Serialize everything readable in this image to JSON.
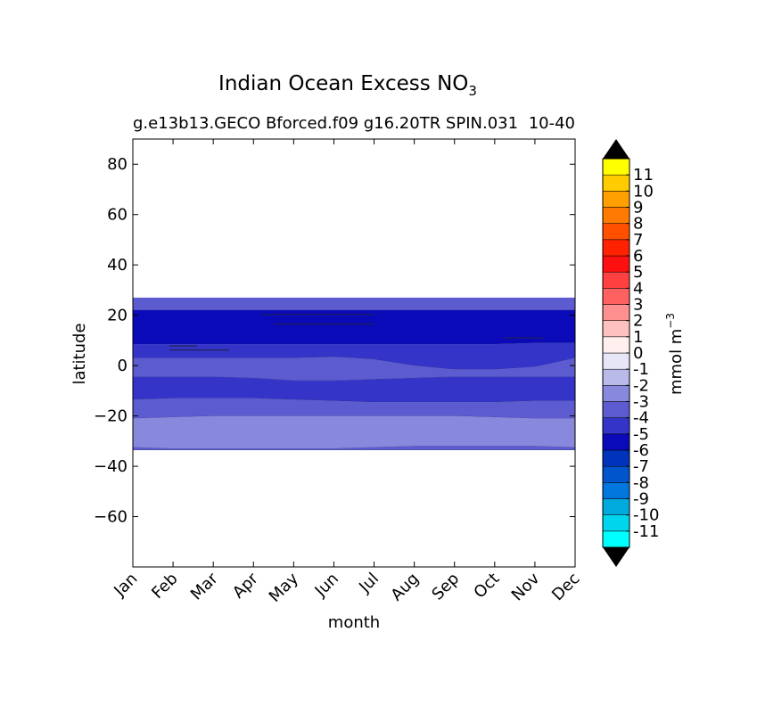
{
  "chart_data": {
    "type": "heatmap",
    "title": "Indian Ocean Excess NO",
    "title_subscript": "3",
    "subtitle": "g.e13b13.GECO Bforced.f09 g16.20TR SPIN.031",
    "subtitle_right": "10-40",
    "xlabel": "month",
    "ylabel": "latitude",
    "x_categories": [
      "Jan",
      "Feb",
      "Mar",
      "Apr",
      "May",
      "Jun",
      "Jul",
      "Aug",
      "Sep",
      "Oct",
      "Nov",
      "Dec"
    ],
    "ylim": [
      -80,
      90
    ],
    "y_ticks": [
      80,
      60,
      40,
      20,
      0,
      -20,
      -40,
      -60
    ],
    "y_tick_labels": [
      "80",
      "60",
      "40",
      "20",
      "0",
      "−20",
      "−40",
      "−60"
    ],
    "colorbar": {
      "label": "mmol m",
      "label_superscript": "−3",
      "levels": [
        -12,
        -11,
        -10,
        -9,
        -8,
        -7,
        -6,
        -5,
        -4,
        -3,
        -2,
        -1,
        0,
        1,
        2,
        3,
        4,
        5,
        6,
        7,
        8,
        9,
        10,
        11,
        12
      ],
      "tick_labels": [
        "-11",
        "-10",
        "-9",
        "-8",
        "-7",
        "-6",
        "-5",
        "-4",
        "-3",
        "-2",
        "-1",
        "0",
        "1",
        "2",
        "3",
        "4",
        "5",
        "6",
        "7",
        "8",
        "9",
        "10",
        "11"
      ],
      "colors": [
        "#00ffff",
        "#00d5ee",
        "#00aadd",
        "#0077dd",
        "#0055cc",
        "#0033bb",
        "#0a0ab8",
        "#3434c8",
        "#5c5cd0",
        "#8888dd",
        "#b9b9ea",
        "#e6e6f7",
        "#fff0f0",
        "#ffc0c0",
        "#ff9090",
        "#ff6060",
        "#ff4040",
        "#ff1010",
        "#ff2200",
        "#ff5000",
        "#ff7a00",
        "#ffa000",
        "#ffcc00",
        "#ffff00"
      ],
      "extend_color": "#000000"
    },
    "bands": [
      {
        "value": -4,
        "color": "#5c5cd0",
        "top": [
          27,
          27,
          27,
          27,
          27,
          27,
          27,
          27,
          27,
          27,
          27,
          27
        ],
        "bottom": [
          22,
          22,
          22,
          22,
          22,
          22,
          22,
          22,
          22,
          22,
          22,
          22
        ]
      },
      {
        "value": -6,
        "color": "#0a0ab8",
        "top": [
          22,
          22,
          22,
          22,
          22,
          22,
          22,
          22,
          22,
          22,
          22,
          22
        ],
        "bottom": [
          8.5,
          8.5,
          8.5,
          8.5,
          8.5,
          8.5,
          8.5,
          8.5,
          8.5,
          8.5,
          9,
          9
        ]
      },
      {
        "value": -5,
        "color": "#3434c8",
        "top": [
          8.5,
          8.5,
          8.5,
          8.5,
          8.5,
          8.5,
          8.5,
          8.5,
          8.5,
          8.5,
          9,
          9
        ],
        "bottom": [
          3,
          3,
          3,
          3,
          3,
          3.5,
          2.5,
          0,
          -1.5,
          -1.5,
          -0.5,
          3
        ]
      },
      {
        "value": -4,
        "color": "#5c5cd0",
        "top": [
          3,
          3,
          3,
          3,
          3,
          3.5,
          2.5,
          0,
          -1.5,
          -1.5,
          -0.5,
          3
        ],
        "bottom": [
          -4.5,
          -4.5,
          -4.5,
          -5,
          -6,
          -6,
          -5.5,
          -5,
          -4.5,
          -4.5,
          -4.5,
          -4.5
        ]
      },
      {
        "value": -5,
        "color": "#3434c8",
        "top": [
          -4.5,
          -4.5,
          -4.5,
          -5,
          -6,
          -6,
          -5.5,
          -5,
          -4.5,
          -4.5,
          -4.5,
          -4.5
        ],
        "bottom": [
          -13.5,
          -13,
          -13,
          -13,
          -13.5,
          -14,
          -14.5,
          -14.5,
          -14.5,
          -14.5,
          -14,
          -14
        ]
      },
      {
        "value": -4,
        "color": "#5c5cd0",
        "top": [
          -13.5,
          -13,
          -13,
          -13,
          -13.5,
          -14,
          -14.5,
          -14.5,
          -14.5,
          -14.5,
          -14,
          -14
        ],
        "bottom": [
          -21,
          -20.5,
          -20,
          -20,
          -20,
          -20,
          -20,
          -20,
          -20,
          -20.5,
          -21,
          -21
        ]
      },
      {
        "value": -3,
        "color": "#8888dd",
        "top": [
          -21,
          -20.5,
          -20,
          -20,
          -20,
          -20,
          -20,
          -20,
          -20,
          -20.5,
          -21,
          -21
        ],
        "bottom": [
          -32.5,
          -33,
          -33,
          -33,
          -33,
          -33,
          -32.5,
          -32,
          -32,
          -32,
          -32,
          -32.5
        ]
      },
      {
        "value": -4,
        "color": "#5c5cd0",
        "top": [
          -32.5,
          -33,
          -33,
          -33,
          -33,
          -33,
          -32.5,
          -32,
          -32,
          -32,
          -32,
          -32.5
        ],
        "bottom": [
          -33.5,
          -33.5,
          -33.5,
          -33.5,
          -33.5,
          -33.5,
          -33.5,
          -33.5,
          -33.5,
          -33.5,
          -33.5,
          -33.5
        ]
      }
    ],
    "contour_lines": [
      {
        "x": [
          0.9,
          1.6
        ],
        "y": [
          7.8,
          7.8
        ]
      },
      {
        "x": [
          0.9,
          2.4
        ],
        "y": [
          6.2,
          6.2
        ]
      },
      {
        "x": [
          3.2,
          6.0
        ],
        "y": [
          20.3,
          20.3
        ]
      },
      {
        "x": [
          3.5,
          6.0
        ],
        "y": [
          16.5,
          16.5
        ]
      },
      {
        "x": [
          9.2,
          10.2
        ],
        "y": [
          11.0,
          11.0
        ]
      }
    ]
  }
}
